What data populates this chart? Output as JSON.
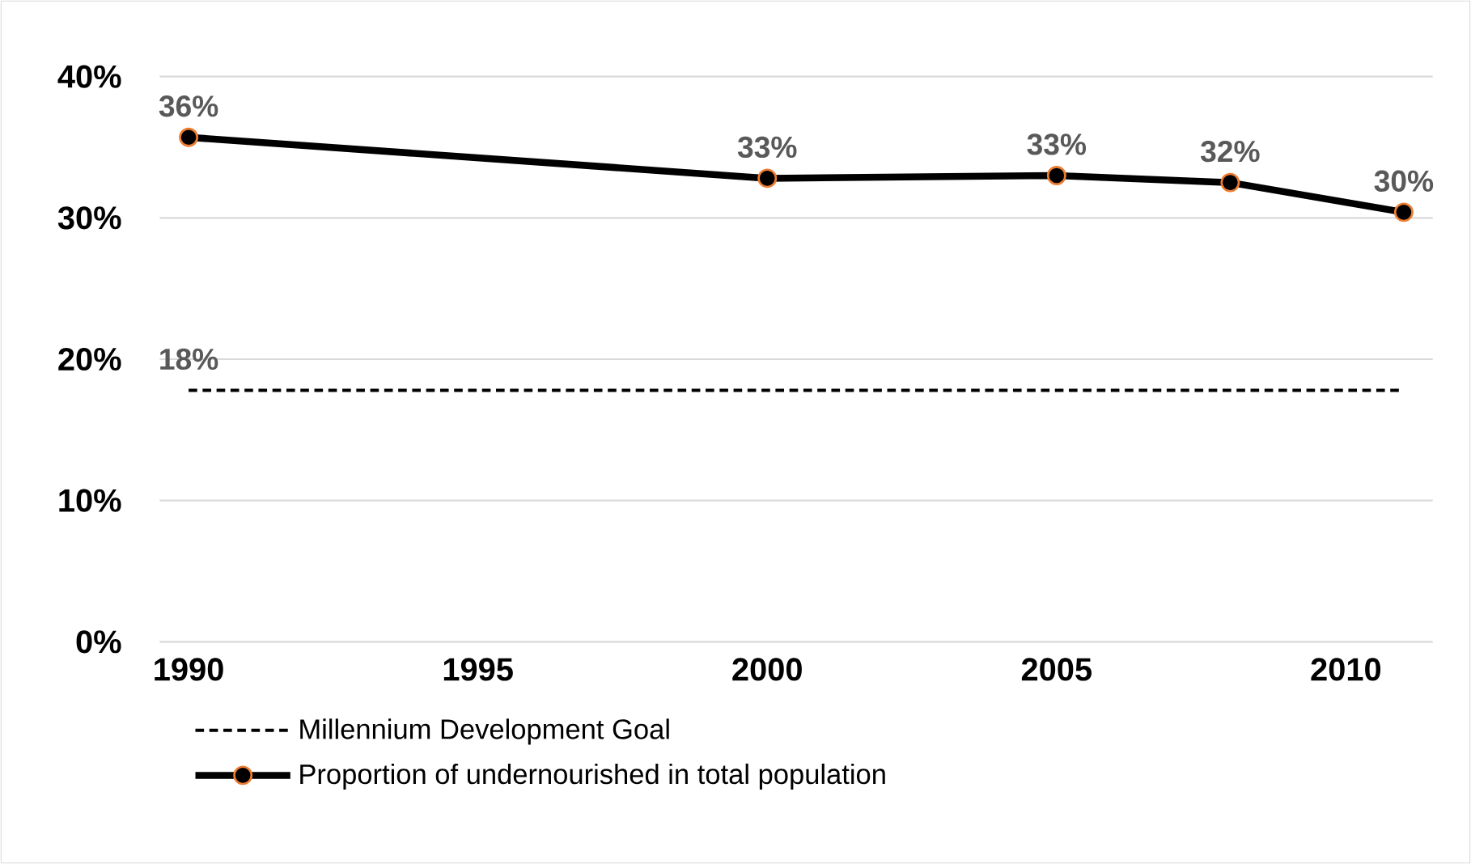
{
  "chart_data": {
    "type": "line",
    "xlim": [
      1989.5,
      2011.5
    ],
    "xticks": [
      1990,
      1995,
      2000,
      2005,
      2010
    ],
    "ylim": [
      0,
      40
    ],
    "yticks": [
      {
        "value": 0,
        "label": "0%"
      },
      {
        "value": 10,
        "label": "10%"
      },
      {
        "value": 20,
        "label": "20%"
      },
      {
        "value": 30,
        "label": "30%"
      },
      {
        "value": 40,
        "label": "40%"
      }
    ],
    "grid": "y",
    "legend": "bottom",
    "series": [
      {
        "name": "Millennium Development Goal",
        "color": "#000000",
        "line_style": "dashed",
        "marker": "none",
        "x": [
          1990,
          2011
        ],
        "values": [
          17.8,
          17.8
        ],
        "value_labels": [
          "18%",
          null
        ]
      },
      {
        "name": "Proportion of undernourished in total population",
        "color": "#000000",
        "line_style": "solid",
        "marker": "circle",
        "x": [
          1990,
          2000,
          2005,
          2008,
          2011
        ],
        "values": [
          35.7,
          32.8,
          33.0,
          32.5,
          30.4
        ],
        "value_labels": [
          "36%",
          "33%",
          "33%",
          "32%",
          "30%"
        ]
      }
    ]
  }
}
